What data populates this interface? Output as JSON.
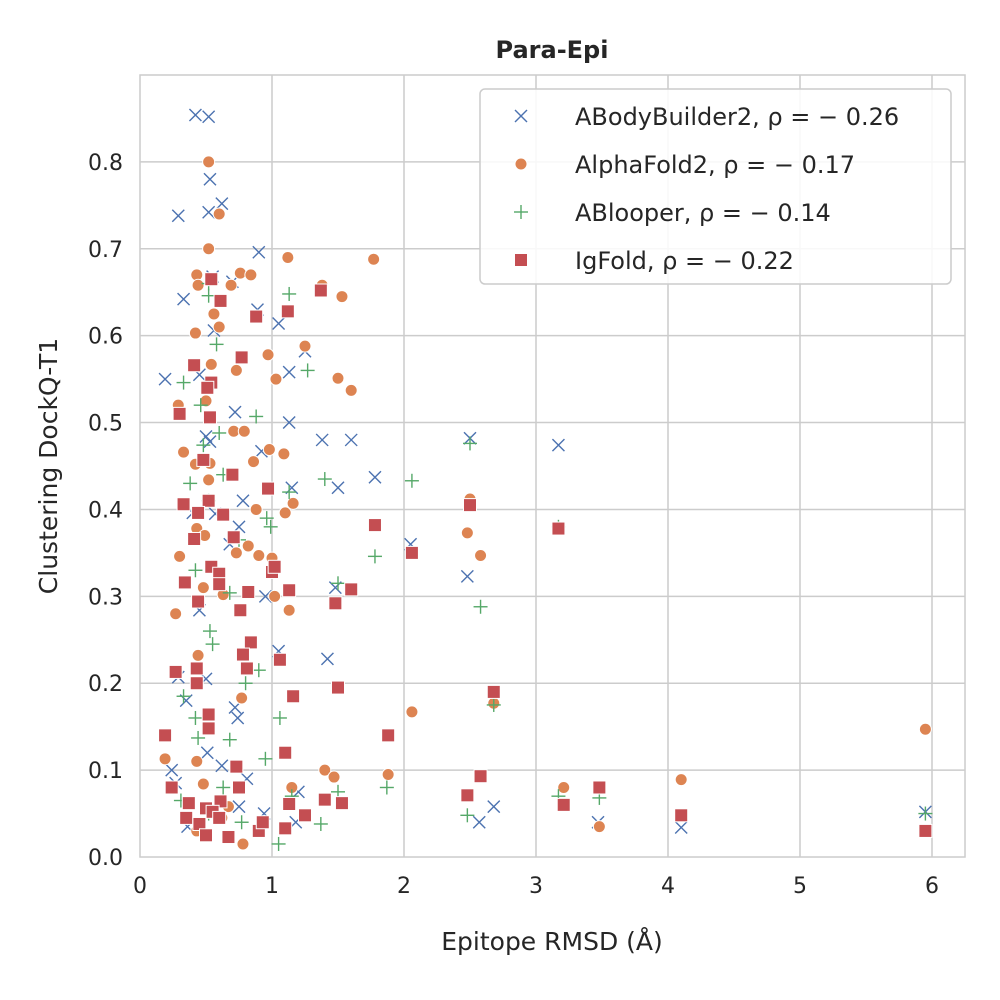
{
  "chart_data": {
    "type": "scatter",
    "title": "Para-Epi",
    "xlabel": "Epitope RMSD (Å)",
    "ylabel": "Clustering DockQ-T1",
    "xlim": [
      0,
      6.25
    ],
    "ylim": [
      0,
      0.9
    ],
    "xticks": [
      "0",
      "1",
      "2",
      "3",
      "4",
      "5",
      "6"
    ],
    "yticks": [
      "0.0",
      "0.1",
      "0.2",
      "0.3",
      "0.4",
      "0.5",
      "0.6",
      "0.7",
      "0.8"
    ],
    "grid": true,
    "legend_position": "top-right",
    "series": [
      {
        "name": "ABodyBuilder2, ρ = − 0.26",
        "marker": "x",
        "color": "#4c72b0",
        "points": [
          [
            0.42,
            0.854
          ],
          [
            0.52,
            0.852
          ],
          [
            0.53,
            0.78
          ],
          [
            0.29,
            0.738
          ],
          [
            0.62,
            0.752
          ],
          [
            0.52,
            0.742
          ],
          [
            0.9,
            0.696
          ],
          [
            0.7,
            0.662
          ],
          [
            0.33,
            0.642
          ],
          [
            0.55,
            0.668
          ],
          [
            0.89,
            0.63
          ],
          [
            1.05,
            0.614
          ],
          [
            0.56,
            0.606
          ],
          [
            1.25,
            0.582
          ],
          [
            0.19,
            0.55
          ],
          [
            0.45,
            0.555
          ],
          [
            1.13,
            0.558
          ],
          [
            0.72,
            0.512
          ],
          [
            0.5,
            0.484
          ],
          [
            1.13,
            0.5
          ],
          [
            1.38,
            0.48
          ],
          [
            1.6,
            0.48
          ],
          [
            2.5,
            0.482
          ],
          [
            3.17,
            0.474
          ],
          [
            0.53,
            0.478
          ],
          [
            0.92,
            0.467
          ],
          [
            1.78,
            0.437
          ],
          [
            1.15,
            0.425
          ],
          [
            1.5,
            0.425
          ],
          [
            0.78,
            0.41
          ],
          [
            0.4,
            0.396
          ],
          [
            0.57,
            0.395
          ],
          [
            0.75,
            0.38
          ],
          [
            2.05,
            0.36
          ],
          [
            0.68,
            0.36
          ],
          [
            1.48,
            0.31
          ],
          [
            2.48,
            0.323
          ],
          [
            0.45,
            0.284
          ],
          [
            0.95,
            0.3
          ],
          [
            1.05,
            0.237
          ],
          [
            1.42,
            0.228
          ],
          [
            0.5,
            0.205
          ],
          [
            0.29,
            0.207
          ],
          [
            0.35,
            0.18
          ],
          [
            0.72,
            0.172
          ],
          [
            0.74,
            0.16
          ],
          [
            0.51,
            0.12
          ],
          [
            0.62,
            0.105
          ],
          [
            0.24,
            0.1
          ],
          [
            0.81,
            0.09
          ],
          [
            0.75,
            0.058
          ],
          [
            0.27,
            0.085
          ],
          [
            1.18,
            0.04
          ],
          [
            2.57,
            0.04
          ],
          [
            2.68,
            0.058
          ],
          [
            3.47,
            0.04
          ],
          [
            4.1,
            0.034
          ],
          [
            5.95,
            0.052
          ],
          [
            0.36,
            0.035
          ],
          [
            1.2,
            0.075
          ],
          [
            0.94,
            0.05
          ]
        ]
      },
      {
        "name": "AlphaFold2, ρ = − 0.17",
        "marker": "o",
        "color": "#dd8452",
        "points": [
          [
            0.52,
            0.8
          ],
          [
            0.6,
            0.74
          ],
          [
            0.52,
            0.7
          ],
          [
            1.77,
            0.688
          ],
          [
            1.12,
            0.69
          ],
          [
            0.43,
            0.67
          ],
          [
            0.76,
            0.672
          ],
          [
            0.84,
            0.67
          ],
          [
            0.44,
            0.658
          ],
          [
            0.69,
            0.658
          ],
          [
            1.38,
            0.658
          ],
          [
            1.53,
            0.645
          ],
          [
            0.56,
            0.625
          ],
          [
            0.6,
            0.61
          ],
          [
            0.42,
            0.603
          ],
          [
            1.25,
            0.588
          ],
          [
            0.97,
            0.578
          ],
          [
            0.54,
            0.567
          ],
          [
            0.73,
            0.56
          ],
          [
            1.5,
            0.551
          ],
          [
            1.03,
            0.55
          ],
          [
            1.6,
            0.537
          ],
          [
            0.29,
            0.52
          ],
          [
            0.5,
            0.525
          ],
          [
            0.71,
            0.49
          ],
          [
            0.79,
            0.49
          ],
          [
            0.33,
            0.466
          ],
          [
            1.09,
            0.464
          ],
          [
            0.98,
            0.469
          ],
          [
            0.86,
            0.455
          ],
          [
            0.53,
            0.453
          ],
          [
            0.42,
            0.452
          ],
          [
            0.52,
            0.434
          ],
          [
            2.5,
            0.412
          ],
          [
            1.16,
            0.407
          ],
          [
            0.88,
            0.4
          ],
          [
            1.1,
            0.396
          ],
          [
            0.43,
            0.378
          ],
          [
            0.49,
            0.37
          ],
          [
            2.48,
            0.373
          ],
          [
            0.73,
            0.35
          ],
          [
            0.82,
            0.358
          ],
          [
            0.3,
            0.346
          ],
          [
            0.9,
            0.347
          ],
          [
            1.0,
            0.344
          ],
          [
            2.58,
            0.347
          ],
          [
            1.02,
            0.3
          ],
          [
            1.13,
            0.284
          ],
          [
            0.63,
            0.302
          ],
          [
            0.48,
            0.31
          ],
          [
            0.27,
            0.28
          ],
          [
            0.44,
            0.232
          ],
          [
            0.77,
            0.183
          ],
          [
            2.68,
            0.177
          ],
          [
            2.06,
            0.167
          ],
          [
            0.19,
            0.113
          ],
          [
            0.43,
            0.11
          ],
          [
            1.4,
            0.1
          ],
          [
            1.88,
            0.095
          ],
          [
            1.47,
            0.092
          ],
          [
            4.1,
            0.089
          ],
          [
            3.21,
            0.08
          ],
          [
            1.15,
            0.08
          ],
          [
            0.48,
            0.084
          ],
          [
            5.95,
            0.147
          ],
          [
            3.48,
            0.035
          ],
          [
            0.43,
            0.03
          ],
          [
            0.67,
            0.058
          ],
          [
            0.78,
            0.015
          ],
          [
            0.62,
            0.045
          ]
        ]
      },
      {
        "name": "ABlooper, ρ = − 0.14",
        "marker": "+",
        "color": "#55a868",
        "points": [
          [
            0.52,
            0.66
          ],
          [
            0.52,
            0.646
          ],
          [
            1.13,
            0.648
          ],
          [
            0.58,
            0.59
          ],
          [
            1.27,
            0.56
          ],
          [
            0.33,
            0.546
          ],
          [
            0.46,
            0.52
          ],
          [
            0.88,
            0.507
          ],
          [
            0.6,
            0.488
          ],
          [
            0.48,
            0.474
          ],
          [
            2.5,
            0.476
          ],
          [
            1.4,
            0.435
          ],
          [
            1.13,
            0.42
          ],
          [
            2.06,
            0.433
          ],
          [
            0.38,
            0.43
          ],
          [
            0.63,
            0.44
          ],
          [
            0.96,
            0.39
          ],
          [
            0.52,
            0.41
          ],
          [
            3.17,
            0.38
          ],
          [
            0.75,
            0.365
          ],
          [
            0.99,
            0.38
          ],
          [
            1.78,
            0.346
          ],
          [
            0.42,
            0.33
          ],
          [
            1.5,
            0.315
          ],
          [
            0.68,
            0.304
          ],
          [
            2.58,
            0.288
          ],
          [
            0.53,
            0.26
          ],
          [
            0.55,
            0.245
          ],
          [
            0.9,
            0.215
          ],
          [
            0.8,
            0.2
          ],
          [
            0.33,
            0.185
          ],
          [
            0.42,
            0.16
          ],
          [
            1.06,
            0.16
          ],
          [
            2.68,
            0.175
          ],
          [
            0.44,
            0.137
          ],
          [
            0.68,
            0.135
          ],
          [
            0.95,
            0.113
          ],
          [
            0.63,
            0.08
          ],
          [
            0.31,
            0.065
          ],
          [
            1.87,
            0.08
          ],
          [
            1.15,
            0.07
          ],
          [
            1.5,
            0.075
          ],
          [
            3.17,
            0.07
          ],
          [
            3.48,
            0.068
          ],
          [
            2.48,
            0.048
          ],
          [
            1.37,
            0.038
          ],
          [
            0.77,
            0.04
          ],
          [
            1.05,
            0.015
          ],
          [
            5.95,
            0.05
          ],
          [
            0.52,
            0.05
          ]
        ]
      },
      {
        "name": "IgFold, ρ = − 0.22",
        "marker": "s",
        "color": "#c44e52",
        "points": [
          [
            0.54,
            0.665
          ],
          [
            1.37,
            0.652
          ],
          [
            0.61,
            0.64
          ],
          [
            1.12,
            0.628
          ],
          [
            0.88,
            0.622
          ],
          [
            0.77,
            0.575
          ],
          [
            0.41,
            0.566
          ],
          [
            0.54,
            0.546
          ],
          [
            0.51,
            0.54
          ],
          [
            0.3,
            0.51
          ],
          [
            0.53,
            0.506
          ],
          [
            0.48,
            0.457
          ],
          [
            0.7,
            0.44
          ],
          [
            0.97,
            0.424
          ],
          [
            0.52,
            0.41
          ],
          [
            0.33,
            0.406
          ],
          [
            2.5,
            0.405
          ],
          [
            0.44,
            0.396
          ],
          [
            0.63,
            0.394
          ],
          [
            1.78,
            0.382
          ],
          [
            3.17,
            0.378
          ],
          [
            0.41,
            0.366
          ],
          [
            0.71,
            0.368
          ],
          [
            2.06,
            0.35
          ],
          [
            1.0,
            0.328
          ],
          [
            1.02,
            0.334
          ],
          [
            0.54,
            0.334
          ],
          [
            0.6,
            0.326
          ],
          [
            0.34,
            0.316
          ],
          [
            0.6,
            0.314
          ],
          [
            1.13,
            0.307
          ],
          [
            1.6,
            0.308
          ],
          [
            0.82,
            0.305
          ],
          [
            0.44,
            0.294
          ],
          [
            1.48,
            0.292
          ],
          [
            0.76,
            0.284
          ],
          [
            0.84,
            0.247
          ],
          [
            0.78,
            0.233
          ],
          [
            0.43,
            0.217
          ],
          [
            0.81,
            0.217
          ],
          [
            1.06,
            0.227
          ],
          [
            0.27,
            0.213
          ],
          [
            0.43,
            0.2
          ],
          [
            1.5,
            0.195
          ],
          [
            2.68,
            0.19
          ],
          [
            1.16,
            0.185
          ],
          [
            0.52,
            0.164
          ],
          [
            0.52,
            0.148
          ],
          [
            0.19,
            0.14
          ],
          [
            1.88,
            0.14
          ],
          [
            1.1,
            0.12
          ],
          [
            0.73,
            0.104
          ],
          [
            2.58,
            0.093
          ],
          [
            0.75,
            0.08
          ],
          [
            0.24,
            0.08
          ],
          [
            3.48,
            0.08
          ],
          [
            1.4,
            0.066
          ],
          [
            1.53,
            0.062
          ],
          [
            1.13,
            0.061
          ],
          [
            0.37,
            0.062
          ],
          [
            3.21,
            0.06
          ],
          [
            0.61,
            0.064
          ],
          [
            0.5,
            0.056
          ],
          [
            0.55,
            0.052
          ],
          [
            2.48,
            0.071
          ],
          [
            4.1,
            0.048
          ],
          [
            1.25,
            0.048
          ],
          [
            0.35,
            0.045
          ],
          [
            0.45,
            0.038
          ],
          [
            0.5,
            0.025
          ],
          [
            0.67,
            0.023
          ],
          [
            0.9,
            0.03
          ],
          [
            1.1,
            0.033
          ],
          [
            5.95,
            0.03
          ],
          [
            0.93,
            0.04
          ],
          [
            0.6,
            0.045
          ]
        ]
      }
    ]
  }
}
